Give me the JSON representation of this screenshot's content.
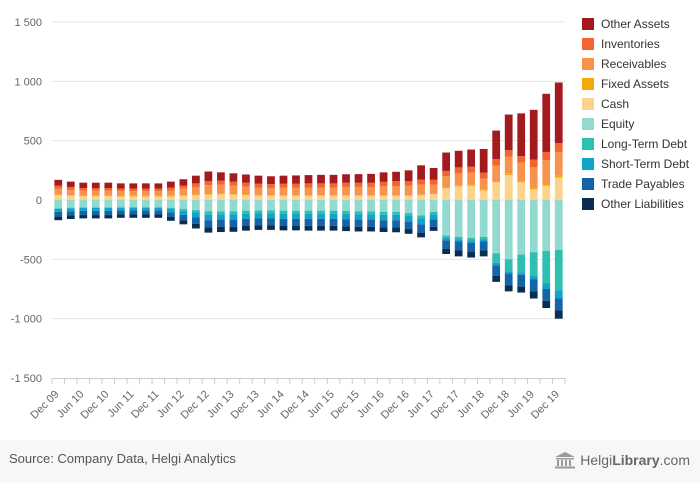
{
  "legend_title": "",
  "legend": [
    {
      "name": "Other Assets",
      "color": "#a31a1f"
    },
    {
      "name": "Inventories",
      "color": "#f26530"
    },
    {
      "name": "Receivables",
      "color": "#f7934c"
    },
    {
      "name": "Fixed Assets",
      "color": "#f5a90a"
    },
    {
      "name": "Cash",
      "color": "#fcd38b"
    },
    {
      "name": "Equity",
      "color": "#92d9d0"
    },
    {
      "name": "Long-Term Debt",
      "color": "#2ebfb1"
    },
    {
      "name": "Short-Term Debt",
      "color": "#12a3c9"
    },
    {
      "name": "Trade Payables",
      "color": "#1465a8"
    },
    {
      "name": "Other Liabilities",
      "color": "#0a2d52"
    }
  ],
  "footer": {
    "source": "Source: Company Data, Helgi Analytics",
    "brand_light": "Helgi",
    "brand_bold": "Library",
    "brand_suffix": ".com",
    "brand_icon": "library-building-icon"
  },
  "chart_data": {
    "type": "bar",
    "stacked": true,
    "title": "",
    "xlabel": "",
    "ylabel": "",
    "ylim": [
      -1500,
      1500
    ],
    "yticks": [
      1500,
      1000,
      500,
      0,
      -500,
      -1000,
      -1500
    ],
    "ytick_labels": [
      "1 500",
      "1 000",
      "500",
      "0",
      "-500",
      "-1 000",
      "-1 500"
    ],
    "grid": true,
    "legend_position": "right",
    "categories": [
      "Dec 09",
      "Mar 10",
      "Jun 10",
      "Sep 10",
      "Dec 10",
      "Mar 11",
      "Jun 11",
      "Sep 11",
      "Dec 11",
      "Mar 12",
      "Jun 12",
      "Sep 12",
      "Dec 12",
      "Mar 13",
      "Jun 13",
      "Sep 13",
      "Dec 13",
      "Mar 14",
      "Jun 14",
      "Sep 14",
      "Dec 14",
      "Mar 15",
      "Jun 15",
      "Sep 15",
      "Dec 15",
      "Mar 16",
      "Jun 16",
      "Sep 16",
      "Dec 16",
      "Mar 17",
      "Jun 17",
      "Sep 17",
      "Dec 17",
      "Mar 18",
      "Jun 18",
      "Sep 18",
      "Dec 18",
      "Mar 19",
      "Jun 19",
      "Sep 19",
      "Dec 19"
    ],
    "xtick_labels": [
      "Dec 09",
      "Jun 10",
      "Dec 10",
      "Jun 11",
      "Dec 11",
      "Jun 12",
      "Dec 12",
      "Jun 13",
      "Dec 13",
      "Jun 14",
      "Dec 14",
      "Jun 15",
      "Dec 15",
      "Jun 16",
      "Dec 16",
      "Jun 17",
      "Dec 17",
      "Jun 18",
      "Dec 18",
      "Jun 19",
      "Dec 19"
    ],
    "series": [
      {
        "name": "Cash",
        "color": "#fcd38b",
        "values": [
          40,
          35,
          32,
          32,
          32,
          30,
          30,
          30,
          30,
          30,
          35,
          40,
          45,
          48,
          45,
          42,
          38,
          35,
          35,
          35,
          35,
          35,
          35,
          35,
          35,
          35,
          35,
          35,
          35,
          40,
          50,
          100,
          115,
          120,
          80,
          150,
          210,
          150,
          90,
          120,
          190
        ]
      },
      {
        "name": "Fixed Assets",
        "color": "#f5a90a",
        "values": [
          5,
          5,
          5,
          5,
          5,
          5,
          5,
          5,
          5,
          5,
          5,
          5,
          5,
          5,
          5,
          5,
          5,
          5,
          5,
          5,
          5,
          5,
          5,
          5,
          5,
          5,
          5,
          5,
          5,
          5,
          5,
          10,
          10,
          10,
          10,
          10,
          15,
          15,
          15,
          15,
          15
        ]
      },
      {
        "name": "Receivables",
        "color": "#f7934c",
        "values": [
          50,
          45,
          42,
          42,
          42,
          40,
          40,
          40,
          40,
          45,
          55,
          65,
          75,
          75,
          70,
          65,
          62,
          62,
          65,
          65,
          65,
          65,
          65,
          70,
          70,
          70,
          75,
          78,
          80,
          85,
          75,
          90,
          100,
          100,
          90,
          130,
          140,
          150,
          170,
          200,
          200
        ]
      },
      {
        "name": "Inventories",
        "color": "#f26530",
        "values": [
          25,
          25,
          22,
          22,
          22,
          22,
          22,
          22,
          22,
          25,
          25,
          30,
          35,
          35,
          35,
          33,
          32,
          32,
          32,
          32,
          35,
          35,
          35,
          35,
          35,
          35,
          38,
          40,
          40,
          42,
          40,
          45,
          50,
          50,
          50,
          55,
          55,
          55,
          65,
          70,
          75
        ]
      },
      {
        "name": "Other Assets",
        "color": "#a31a1f",
        "values": [
          50,
          45,
          45,
          45,
          45,
          43,
          43,
          43,
          43,
          50,
          55,
          65,
          80,
          70,
          70,
          70,
          68,
          66,
          68,
          70,
          70,
          72,
          72,
          72,
          73,
          75,
          80,
          80,
          90,
          120,
          100,
          155,
          140,
          145,
          200,
          240,
          300,
          360,
          420,
          490,
          510
        ]
      },
      {
        "name": "Equity",
        "color": "#92d9d0",
        "values": [
          -70,
          -65,
          -62,
          -62,
          -62,
          -60,
          -60,
          -60,
          -60,
          -65,
          -75,
          -85,
          -95,
          -95,
          -95,
          -90,
          -88,
          -88,
          -90,
          -90,
          -90,
          -90,
          -90,
          -92,
          -95,
          -95,
          -100,
          -100,
          -110,
          -130,
          -100,
          -300,
          -310,
          -320,
          -310,
          -450,
          -500,
          -460,
          -440,
          -430,
          -420
        ]
      },
      {
        "name": "Long-Term Debt",
        "color": "#2ebfb1",
        "values": [
          -5,
          -5,
          -5,
          -5,
          -5,
          -5,
          -5,
          -5,
          -5,
          -10,
          -15,
          -20,
          -30,
          -25,
          -25,
          -25,
          -25,
          -25,
          -25,
          -25,
          -25,
          -25,
          -25,
          -25,
          -25,
          -25,
          -25,
          -25,
          -25,
          -25,
          -20,
          -20,
          -20,
          -20,
          -20,
          -80,
          -100,
          -150,
          -200,
          -270,
          -340
        ]
      },
      {
        "name": "Short-Term Debt",
        "color": "#12a3c9",
        "values": [
          -25,
          -25,
          -25,
          -25,
          -25,
          -22,
          -22,
          -22,
          -22,
          -28,
          -35,
          -40,
          -45,
          -45,
          -45,
          -43,
          -43,
          -43,
          -43,
          -43,
          -43,
          -43,
          -43,
          -45,
          -45,
          -45,
          -45,
          -45,
          -45,
          -50,
          -45,
          -20,
          -20,
          -20,
          -20,
          -20,
          -20,
          -20,
          -30,
          -50,
          -70
        ]
      },
      {
        "name": "Trade Payables",
        "color": "#1465a8",
        "values": [
          -40,
          -35,
          -35,
          -35,
          -35,
          -35,
          -35,
          -35,
          -35,
          -40,
          -45,
          -55,
          -60,
          -60,
          -60,
          -58,
          -56,
          -56,
          -58,
          -58,
          -60,
          -60,
          -60,
          -60,
          -60,
          -60,
          -60,
          -62,
          -65,
          -70,
          -60,
          -70,
          -75,
          -75,
          -75,
          -90,
          -100,
          -100,
          -100,
          -100,
          -100
        ]
      },
      {
        "name": "Other Liabilities",
        "color": "#0a2d52",
        "values": [
          -30,
          -30,
          -28,
          -28,
          -28,
          -28,
          -28,
          -28,
          -28,
          -32,
          -35,
          -40,
          -45,
          -45,
          -43,
          -42,
          -40,
          -40,
          -40,
          -40,
          -40,
          -40,
          -40,
          -40,
          -40,
          -40,
          -40,
          -40,
          -40,
          -40,
          -35,
          -45,
          -50,
          -50,
          -50,
          -50,
          -50,
          -50,
          -60,
          -60,
          -70
        ]
      }
    ]
  }
}
